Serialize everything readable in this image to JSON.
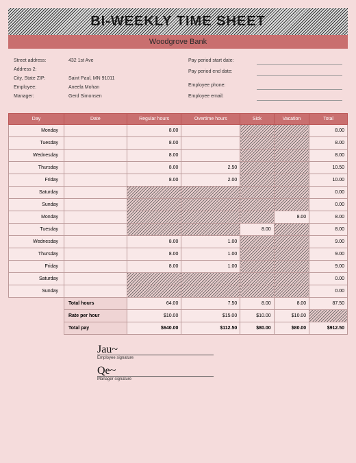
{
  "title": "BI-WEEKLY TIME SHEET",
  "company": "Woodgrove Bank",
  "info_left": {
    "street_label": "Street address:",
    "street": "432 1st Ave",
    "addr2_label": "Address 2:",
    "addr2": "",
    "city_label": "City, State ZIP:",
    "city": "Saint Paul, MN 91011",
    "employee_label": "Employee:",
    "employee": "Aneela Mohan",
    "manager_label": "Manager:",
    "manager": "Gerd Simonsen"
  },
  "info_right": {
    "start_label": "Pay period start date:",
    "start": "",
    "end_label": "Pay period end date:",
    "end": "",
    "phone_label": "Employee phone:",
    "phone": "",
    "email_label": "Employee email:",
    "email": ""
  },
  "columns": [
    "Day",
    "Date",
    "Regular hours",
    "Overtime hours",
    "Sick",
    "Vacation",
    "Total"
  ],
  "rows": [
    {
      "day": "Monday",
      "date": "",
      "reg": "8.00",
      "ot": "",
      "sick": "H",
      "vac": "H",
      "total": "8.00"
    },
    {
      "day": "Tuesday",
      "date": "",
      "reg": "8.00",
      "ot": "",
      "sick": "H",
      "vac": "H",
      "total": "8.00"
    },
    {
      "day": "Wednesday",
      "date": "",
      "reg": "8.00",
      "ot": "",
      "sick": "H",
      "vac": "H",
      "total": "8.00"
    },
    {
      "day": "Thursday",
      "date": "",
      "reg": "8.00",
      "ot": "2.50",
      "sick": "H",
      "vac": "H",
      "total": "10.50"
    },
    {
      "day": "Friday",
      "date": "",
      "reg": "8.00",
      "ot": "2.00",
      "sick": "H",
      "vac": "H",
      "total": "10.00"
    },
    {
      "day": "Saturday",
      "date": "",
      "reg": "H",
      "ot": "H",
      "sick": "H",
      "vac": "H",
      "total": "0.00"
    },
    {
      "day": "Sunday",
      "date": "",
      "reg": "H",
      "ot": "H",
      "sick": "H",
      "vac": "H",
      "total": "0.00"
    },
    {
      "day": "Monday",
      "date": "",
      "reg": "H",
      "ot": "H",
      "sick": "H",
      "vac": "8.00",
      "total": "8.00"
    },
    {
      "day": "Tuesday",
      "date": "",
      "reg": "H",
      "ot": "H",
      "sick": "8.00",
      "vac": "H",
      "total": "8.00"
    },
    {
      "day": "Wednesday",
      "date": "",
      "reg": "8.00",
      "ot": "1.00",
      "sick": "H",
      "vac": "H",
      "total": "9.00"
    },
    {
      "day": "Thursday",
      "date": "",
      "reg": "8.00",
      "ot": "1.00",
      "sick": "H",
      "vac": "H",
      "total": "9.00"
    },
    {
      "day": "Friday",
      "date": "",
      "reg": "8.00",
      "ot": "1.00",
      "sick": "H",
      "vac": "H",
      "total": "9.00"
    },
    {
      "day": "Saturday",
      "date": "",
      "reg": "H",
      "ot": "H",
      "sick": "H",
      "vac": "H",
      "total": "0.00"
    },
    {
      "day": "Sunday",
      "date": "",
      "reg": "H",
      "ot": "H",
      "sick": "H",
      "vac": "H",
      "total": "0.00"
    }
  ],
  "summary": {
    "total_hours_label": "Total hours",
    "total_hours": {
      "reg": "64.00",
      "ot": "7.50",
      "sick": "8.00",
      "vac": "8.00",
      "total": "87.50"
    },
    "rate_label": "Rate per hour",
    "rate": {
      "reg": "$10.00",
      "ot": "$15.00",
      "sick": "$10.00",
      "vac": "$10.00",
      "total": "H"
    },
    "pay_label": "Total pay",
    "pay": {
      "reg": "$640.00",
      "ot": "$112.50",
      "sick": "$80.00",
      "vac": "$80.00",
      "total": "$912.50"
    }
  },
  "sigs": {
    "emp_label": "Employee signature",
    "mgr_label": "Manager signature"
  },
  "colors": {
    "accent": "#c96f6f",
    "bg": "#f5dcdc",
    "hatch_dark": "#555",
    "hatch_light": "#e5caca"
  }
}
